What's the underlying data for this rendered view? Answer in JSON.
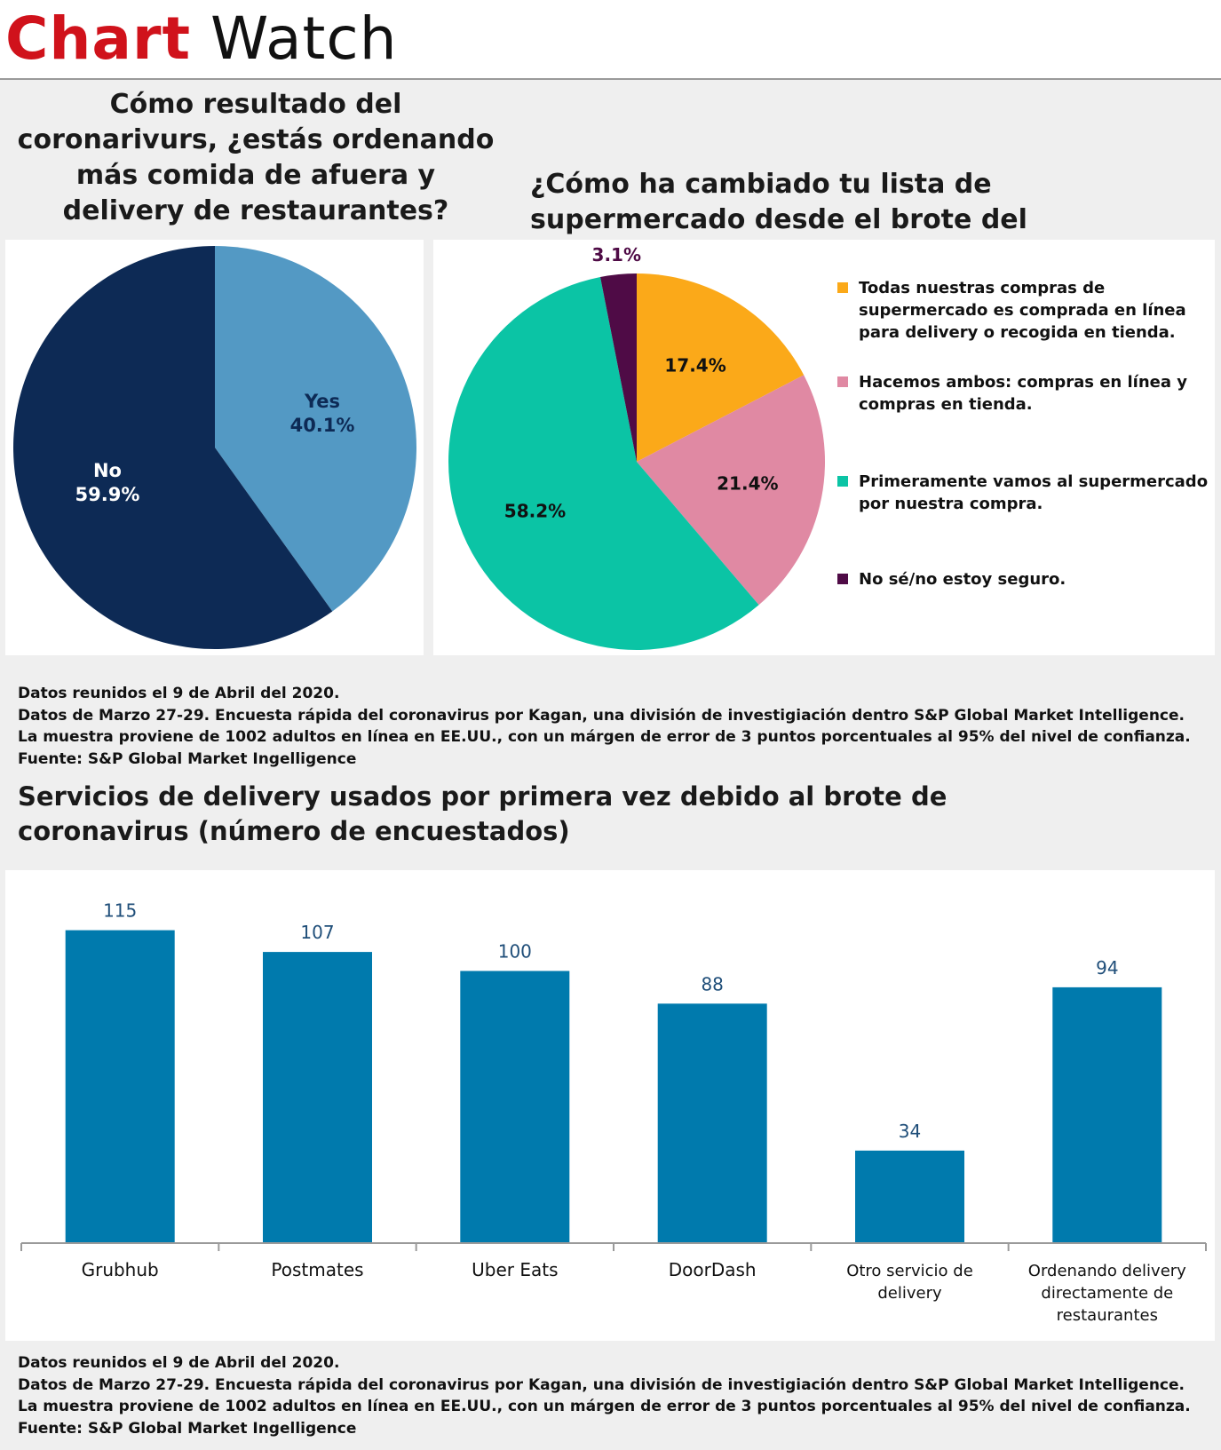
{
  "header": {
    "brand_part1": "Chart",
    "brand_part2": "Watch"
  },
  "colors": {
    "brand_red": "#d0121b",
    "pie1_yes": "#5399c4",
    "pie1_no": "#0d2a55",
    "pie2_online": "#fba919",
    "pie2_both": "#e089a3",
    "pie2_store": "#0bc4a5",
    "pie2_unsure": "#4f0b46",
    "bar": "#007aad"
  },
  "pie_restaurant": {
    "title": "Cómo resultado del coronarivurs, ¿estás ordenando más comida de afuera y delivery de restaurantes?"
  },
  "pie_grocery": {
    "title": "¿Cómo ha cambiado tu lista de supermercado desde el brote del coronavirus?"
  },
  "bar_delivery": {
    "title": "Servicios de delivery usados por primera vez debido al brote de coronavirus (número de encuestados)"
  },
  "notes_top": [
    "Datos reunidos el 9 de Abril del 2020.",
    "Datos de Marzo 27-29. Encuesta rápida del coronavirus por Kagan, una división de investigiación dentro S&P Global Market Intelligence.",
    "La muestra proviene de 1002 adultos en línea en EE.UU., con un márgen de error de 3 puntos porcentuales al 95% del nivel de confianza.",
    "Fuente: S&P Global Market Ingelligence"
  ],
  "notes_bottom": [
    "Datos reunidos el 9 de Abril del 2020.",
    "Datos de Marzo 27-29. Encuesta rápida del coronavirus por Kagan, una división de investigiación dentro S&P Global Market Intelligence.",
    "La muestra proviene de 1002 adultos en línea en EE.UU., con un márgen de error de 3 puntos porcentuales al 95% del nivel de confianza.",
    "Fuente: S&P Global Market Ingelligence"
  ],
  "chart_data": [
    {
      "type": "pie",
      "title": "Cómo resultado del coronarivurs, ¿estás ordenando más comida de afuera y delivery de restaurantes?",
      "slices": [
        {
          "name": "Yes",
          "label": "40.1%",
          "value": 40.1,
          "color": "#5399c4"
        },
        {
          "name": "No",
          "label": "59.9%",
          "value": 59.9,
          "color": "#0d2a55"
        }
      ],
      "legend": "none"
    },
    {
      "type": "pie",
      "title": "¿Cómo ha cambiado tu lista de supermercado desde el brote del coronavirus?",
      "slices": [
        {
          "name": "Todas nuestras compras de supermercado es comprada en línea para delivery o recogida en tienda.",
          "label": "17.4%",
          "value": 17.4,
          "color": "#fba919"
        },
        {
          "name": "Hacemos ambos: compras en línea y compras en tienda.",
          "label": "21.4%",
          "value": 21.4,
          "color": "#e089a3"
        },
        {
          "name": "Primeramente vamos al supermercado por nuestra compra.",
          "label": "58.2%",
          "value": 58.2,
          "color": "#0bc4a5"
        },
        {
          "name": "No sé/no estoy seguro.",
          "label": "3.1%",
          "value": 3.1,
          "color": "#4f0b46"
        }
      ],
      "legend": "right"
    },
    {
      "type": "bar",
      "title": "Servicios de delivery usados por primera vez debido al brote de coronavirus (número de encuestados)",
      "categories": [
        "Grubhub",
        "Postmates",
        "Uber Eats",
        "DoorDash",
        "Otro servicio de delivery",
        "Ordenando delivery directamente de restaurantes"
      ],
      "values": [
        115,
        107,
        100,
        88,
        34,
        94
      ],
      "ylim": [
        0,
        124
      ],
      "grid": false,
      "legend": "none"
    }
  ]
}
